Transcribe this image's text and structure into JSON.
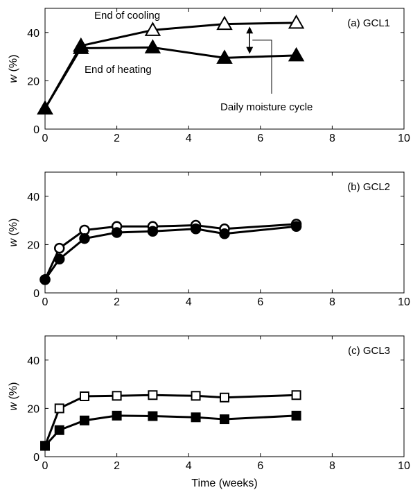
{
  "figure": {
    "shared_xlabel": "Time (weeks)"
  },
  "chart_data": [
    {
      "type": "line",
      "panel_label": "(a) GCL1",
      "xlabel": "",
      "ylabel": "w (%)",
      "xlim": [
        0,
        10
      ],
      "ylim": [
        0,
        50
      ],
      "xticks": [
        0,
        2,
        4,
        6,
        8,
        10
      ],
      "yticks": [
        0,
        20,
        40
      ],
      "grid": false,
      "series": [
        {
          "name": "End of cooling",
          "marker": "triangle",
          "filled": false,
          "x": [
            0,
            1,
            3,
            5,
            7
          ],
          "y": [
            8.5,
            34.5,
            41,
            43.5,
            44
          ]
        },
        {
          "name": "End of heating",
          "marker": "triangle",
          "filled": true,
          "x": [
            0,
            1,
            3,
            5,
            7
          ],
          "y": [
            8.5,
            33.5,
            33.8,
            29.5,
            30.5
          ]
        }
      ],
      "annotations": [
        {
          "id": "end_cooling",
          "text": "End of cooling"
        },
        {
          "id": "end_heating",
          "text": "End of heating"
        },
        {
          "id": "daily_cycle",
          "text": "Daily moisture cycle"
        }
      ]
    },
    {
      "type": "line",
      "panel_label": "(b) GCL2",
      "xlabel": "",
      "ylabel": "w (%)",
      "xlim": [
        0,
        10
      ],
      "ylim": [
        0,
        50
      ],
      "xticks": [
        0,
        2,
        4,
        6,
        8,
        10
      ],
      "yticks": [
        0,
        20,
        40
      ],
      "grid": false,
      "series": [
        {
          "marker": "circle",
          "filled": false,
          "x": [
            0,
            0.4,
            1.1,
            2,
            3,
            4.2,
            5,
            7
          ],
          "y": [
            5.5,
            18.5,
            26,
            27.5,
            27.5,
            28,
            26.5,
            28.5
          ]
        },
        {
          "marker": "circle",
          "filled": true,
          "x": [
            0,
            0.4,
            1.1,
            2,
            3,
            4.2,
            5,
            7
          ],
          "y": [
            5.5,
            14,
            22.5,
            25,
            25.5,
            26.5,
            24.5,
            27.5
          ]
        }
      ]
    },
    {
      "type": "line",
      "panel_label": "(c) GCL3",
      "xlabel": "Time (weeks)",
      "ylabel": "w (%)",
      "xlim": [
        0,
        10
      ],
      "ylim": [
        0,
        50
      ],
      "xticks": [
        0,
        2,
        4,
        6,
        8,
        10
      ],
      "yticks": [
        0,
        20,
        40
      ],
      "grid": false,
      "series": [
        {
          "marker": "square",
          "filled": false,
          "x": [
            0,
            0.4,
            1.1,
            2,
            3,
            4.2,
            5,
            7
          ],
          "y": [
            4.5,
            20,
            25,
            25.2,
            25.5,
            25.2,
            24.5,
            25.5
          ]
        },
        {
          "marker": "square",
          "filled": true,
          "x": [
            0,
            0.4,
            1.1,
            2,
            3,
            4.2,
            5,
            7
          ],
          "y": [
            4.5,
            11,
            15,
            17,
            16.8,
            16.3,
            15.5,
            17
          ]
        }
      ]
    }
  ]
}
